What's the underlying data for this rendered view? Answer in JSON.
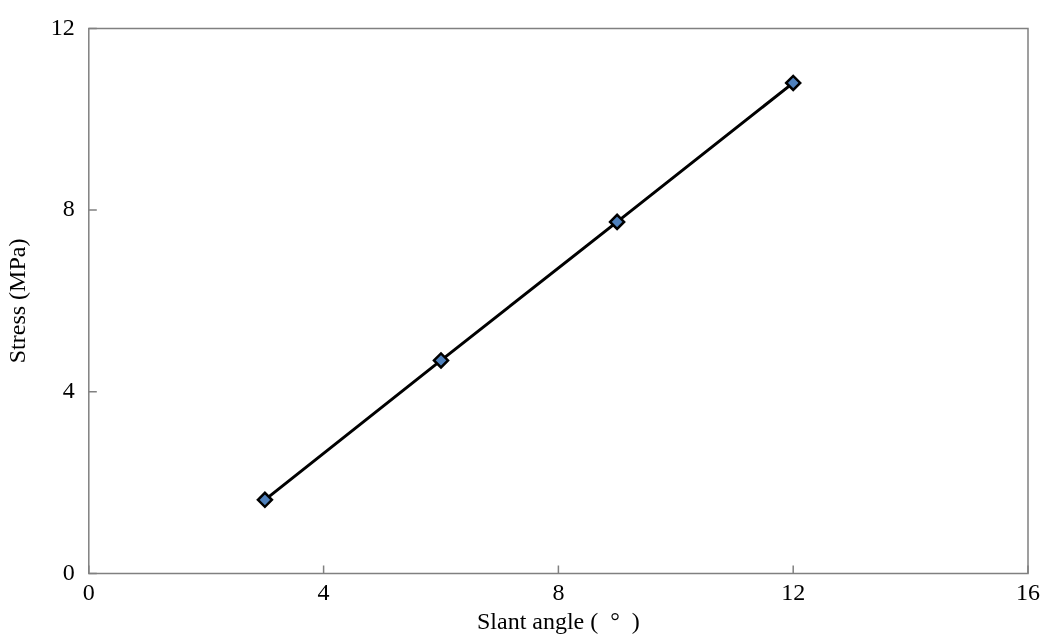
{
  "chart_data": {
    "type": "line",
    "xlabel": "Slant angle (  °  )",
    "ylabel": "Stress (MPa)",
    "x": [
      3,
      6,
      9,
      12
    ],
    "series": [
      {
        "color": "#000000",
        "values": [
          1.62,
          4.69,
          7.74,
          10.8
        ]
      }
    ],
    "xlim": [
      0,
      16
    ],
    "xticks": [
      0,
      4,
      8,
      12,
      16
    ],
    "ylim": [
      0,
      12
    ],
    "yticks": [
      0,
      4,
      8,
      12
    ],
    "grid": false,
    "legend": false,
    "marker": "diamond",
    "line_style": "solid"
  }
}
